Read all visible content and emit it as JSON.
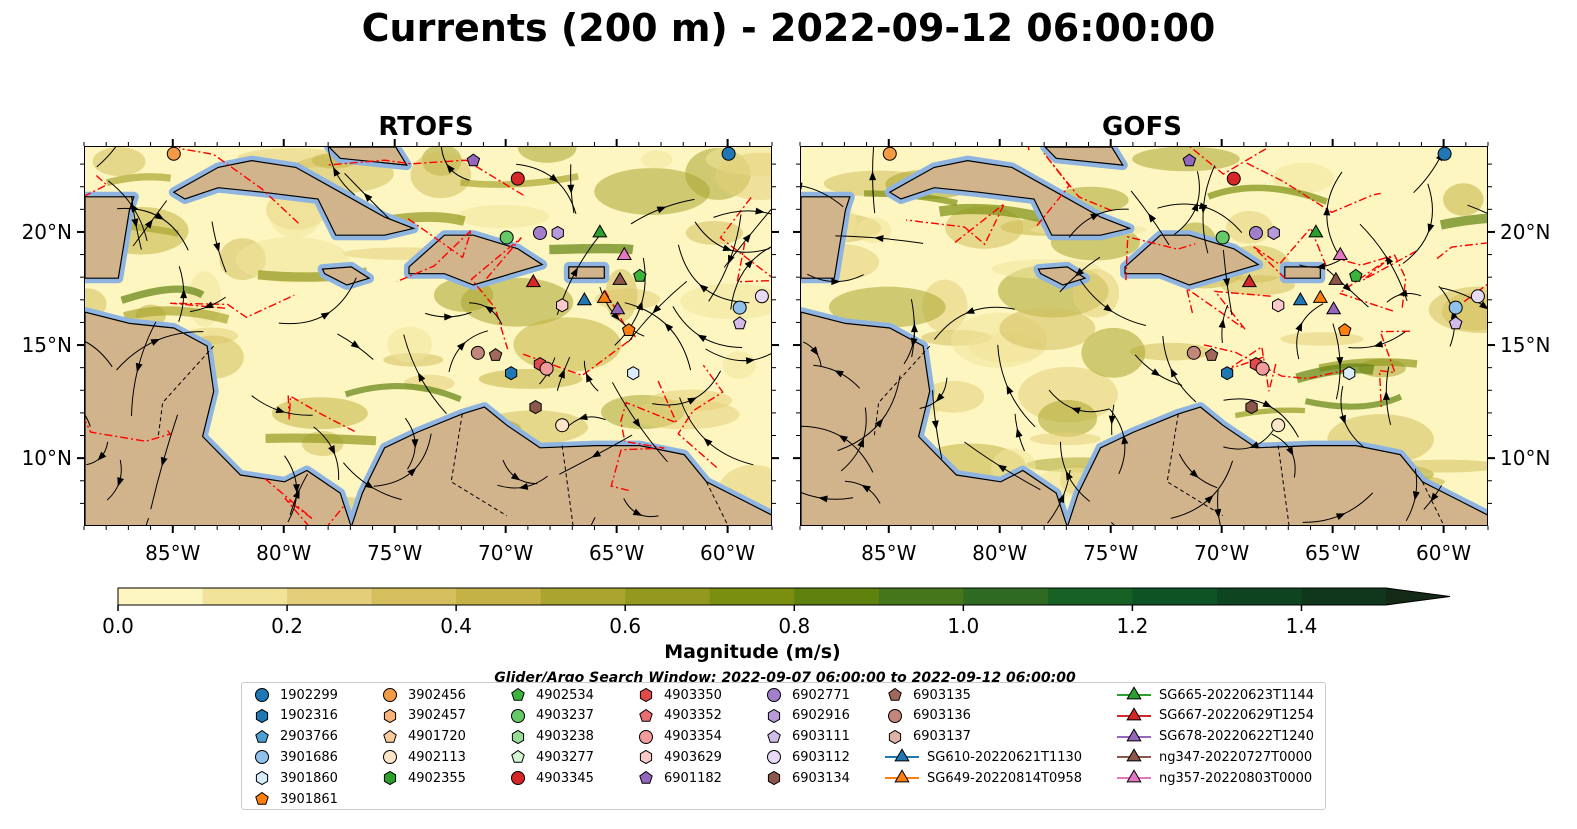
{
  "title": "Currents (200 m) - 2022-09-12 06:00:00",
  "panels": [
    {
      "id": "rtofs",
      "title": "RTOFS"
    },
    {
      "id": "gofs",
      "title": "GOFS"
    }
  ],
  "map": {
    "lon_range": [
      -89,
      -58
    ],
    "lat_range": [
      7,
      23.8
    ],
    "lon_ticks": [
      "85°W",
      "80°W",
      "75°W",
      "70°W",
      "65°W",
      "60°W"
    ],
    "lon_tick_values": [
      -85,
      -80,
      -75,
      -70,
      -65,
      -60
    ],
    "lat_ticks": [
      "10°N",
      "15°N",
      "20°N"
    ],
    "lat_tick_values": [
      10,
      15,
      20
    ],
    "colors": {
      "land": "#d2b48c",
      "shallow_water": "#8fb4e0",
      "eez": "#ff0000",
      "streamline": "#000000"
    }
  },
  "colorbar": {
    "label": "Magnitude (m/s)",
    "min": 0.0,
    "max": 1.6,
    "ticks": [
      "0.0",
      "0.2",
      "0.4",
      "0.6",
      "0.8",
      "1.0",
      "1.2",
      "1.4"
    ],
    "tick_values": [
      0.0,
      0.2,
      0.4,
      0.6,
      0.8,
      1.0,
      1.2,
      1.4
    ],
    "extend": "max",
    "colors": [
      "#fdf6c0",
      "#f1e39a",
      "#e3cf79",
      "#d4bf5c",
      "#c4b344",
      "#aaa52f",
      "#92991e",
      "#7a8e10",
      "#5f820f",
      "#46761a",
      "#2f6a22",
      "#176125",
      "#0d5323",
      "#0e4420",
      "#10371b",
      "#142a16"
    ]
  },
  "search_window": "Glider/Argo Search Window: 2022-09-07 06:00:00 to 2022-09-12 06:00:00",
  "legend": [
    {
      "label": "1902299",
      "marker": "circle",
      "color": "#1f77b4",
      "col": 0,
      "row": 0
    },
    {
      "label": "1902316",
      "marker": "hexagon",
      "color": "#1f77b4",
      "col": 0,
      "row": 1
    },
    {
      "label": "2903766",
      "marker": "pentagon",
      "color": "#4a9fd4",
      "col": 0,
      "row": 2
    },
    {
      "label": "3901686",
      "marker": "circle",
      "color": "#8fc1ea",
      "col": 0,
      "row": 3
    },
    {
      "label": "3901860",
      "marker": "hexagon",
      "color": "#d8ecfa",
      "col": 0,
      "row": 4
    },
    {
      "label": "3901861",
      "marker": "pentagon",
      "color": "#ff7f0e",
      "col": 0,
      "row": 5
    },
    {
      "label": "3902456",
      "marker": "circle",
      "color": "#f39a45",
      "col": 1,
      "row": 0
    },
    {
      "label": "3902457",
      "marker": "hexagon",
      "color": "#f7b37a",
      "col": 1,
      "row": 1
    },
    {
      "label": "4901720",
      "marker": "pentagon",
      "color": "#fbcb9c",
      "col": 1,
      "row": 2
    },
    {
      "label": "4902113",
      "marker": "circle",
      "color": "#fde5c8",
      "col": 1,
      "row": 3
    },
    {
      "label": "4902355",
      "marker": "hexagon",
      "color": "#2ca02c",
      "col": 1,
      "row": 4
    },
    {
      "label": "4902534",
      "marker": "pentagon",
      "color": "#3cb43c",
      "col": 2,
      "row": 0
    },
    {
      "label": "4903237",
      "marker": "circle",
      "color": "#66c866",
      "col": 2,
      "row": 1
    },
    {
      "label": "4903238",
      "marker": "hexagon",
      "color": "#98dc98",
      "col": 2,
      "row": 2
    },
    {
      "label": "4903277",
      "marker": "pentagon",
      "color": "#d2f5d2",
      "col": 2,
      "row": 3
    },
    {
      "label": "4903345",
      "marker": "circle",
      "color": "#d62728",
      "col": 2,
      "row": 4
    },
    {
      "label": "4903350",
      "marker": "hexagon",
      "color": "#e04a4a",
      "col": 3,
      "row": 0
    },
    {
      "label": "4903352",
      "marker": "pentagon",
      "color": "#ea7070",
      "col": 3,
      "row": 1
    },
    {
      "label": "4903354",
      "marker": "circle",
      "color": "#f29b9b",
      "col": 3,
      "row": 2
    },
    {
      "label": "4903629",
      "marker": "hexagon",
      "color": "#fbcaca",
      "col": 3,
      "row": 3
    },
    {
      "label": "6901182",
      "marker": "pentagon",
      "color": "#9467bd",
      "col": 3,
      "row": 4
    },
    {
      "label": "6902771",
      "marker": "circle",
      "color": "#a27fcb",
      "col": 4,
      "row": 0
    },
    {
      "label": "6902916",
      "marker": "hexagon",
      "color": "#b899da",
      "col": 4,
      "row": 1
    },
    {
      "label": "6903111",
      "marker": "pentagon",
      "color": "#d0bbe9",
      "col": 4,
      "row": 2
    },
    {
      "label": "6903112",
      "marker": "circle",
      "color": "#e8d9f5",
      "col": 4,
      "row": 3
    },
    {
      "label": "6903134",
      "marker": "hexagon",
      "color": "#8c564b",
      "col": 4,
      "row": 4
    },
    {
      "label": "6903135",
      "marker": "pentagon",
      "color": "#a0685c",
      "col": 5,
      "row": 0
    },
    {
      "label": "6903136",
      "marker": "circle",
      "color": "#c2877a",
      "col": 5,
      "row": 1
    },
    {
      "label": "6903137",
      "marker": "hexagon",
      "color": "#deb3a8",
      "col": 5,
      "row": 2
    },
    {
      "label": "SG610-20220621T1130",
      "marker": "triangle-line",
      "color": "#1f77b4",
      "col": 5,
      "row": 3
    },
    {
      "label": "SG649-20220814T0958",
      "marker": "triangle-line",
      "color": "#ff7f0e",
      "col": 5,
      "row": 4
    },
    {
      "label": "SG665-20220623T1144",
      "marker": "triangle-line",
      "color": "#2ca02c",
      "col": 6,
      "row": 0
    },
    {
      "label": "SG667-20220629T1254",
      "marker": "triangle-line",
      "color": "#d62728",
      "col": 6,
      "row": 1
    },
    {
      "label": "SG678-20220622T1240",
      "marker": "triangle-line",
      "color": "#9467bd",
      "col": 6,
      "row": 2
    },
    {
      "label": "ng347-20220727T0000",
      "marker": "triangle-line",
      "color": "#8c564b",
      "col": 6,
      "row": 3
    },
    {
      "label": "ng357-20220803T0000",
      "marker": "triangle-line",
      "color": "#e377c2",
      "col": 6,
      "row": 4
    }
  ],
  "platforms": [
    {
      "id": "1902299",
      "lon": -60,
      "lat": 23.5
    },
    {
      "id": "3901686",
      "lon": -59.5,
      "lat": 16.7
    },
    {
      "id": "3901860",
      "lon": -64.3,
      "lat": 13.8
    },
    {
      "id": "1902316",
      "lon": -69.8,
      "lat": 13.8
    },
    {
      "id": "3901861",
      "lon": -64.5,
      "lat": 15.7
    },
    {
      "id": "4902113",
      "lon": -67.5,
      "lat": 11.5
    },
    {
      "id": "4903237",
      "lon": -70,
      "lat": 19.8
    },
    {
      "id": "4902534",
      "lon": -64,
      "lat": 18.1
    },
    {
      "id": "4903345",
      "lon": -69.5,
      "lat": 22.4
    },
    {
      "id": "4903350",
      "lon": -68.5,
      "lat": 14.2
    },
    {
      "id": "4903354",
      "lon": -68.2,
      "lat": 14
    },
    {
      "id": "4903629",
      "lon": -67.5,
      "lat": 16.8
    },
    {
      "id": "6901182",
      "lon": -71.5,
      "lat": 23.2
    },
    {
      "id": "6902771",
      "lon": -68.5,
      "lat": 20
    },
    {
      "id": "6902916",
      "lon": -67.7,
      "lat": 20
    },
    {
      "id": "6903112",
      "lon": -58.5,
      "lat": 17.2
    },
    {
      "id": "6903111",
      "lon": -59.5,
      "lat": 16
    },
    {
      "id": "6903134",
      "lon": -68.7,
      "lat": 12.3
    },
    {
      "id": "6903135",
      "lon": -70.5,
      "lat": 14.6
    },
    {
      "id": "6903136",
      "lon": -71.3,
      "lat": 14.7
    },
    {
      "id": "3902456",
      "lon": -85,
      "lat": 23.5
    },
    {
      "id": "SG610-20220621T1130",
      "lon": -66.5,
      "lat": 17
    },
    {
      "id": "SG649-20220814T0958",
      "lon": -65.6,
      "lat": 17.1
    },
    {
      "id": "SG665-20220623T1144",
      "lon": -65.8,
      "lat": 20
    },
    {
      "id": "SG667-20220629T1254",
      "lon": -68.8,
      "lat": 17.8
    },
    {
      "id": "SG678-20220622T1240",
      "lon": -65,
      "lat": 16.6
    },
    {
      "id": "ng347-20220727T0000",
      "lon": -64.9,
      "lat": 17.9
    },
    {
      "id": "ng357-20220803T0000",
      "lon": -64.7,
      "lat": 19
    }
  ]
}
